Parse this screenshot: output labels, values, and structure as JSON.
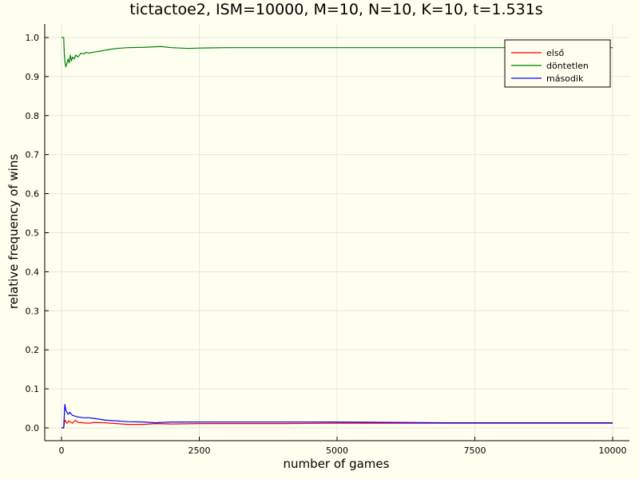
{
  "chart_data": {
    "type": "line",
    "title": "tictactoe2, ISM=10000, M=10, N=10, K=10, t=1.531s",
    "xlabel": "number of games",
    "ylabel": "relative frequency of wins",
    "xlim": [
      0,
      10000
    ],
    "ylim": [
      0,
      1.0
    ],
    "x_ticks": [
      0,
      2500,
      5000,
      7500,
      10000
    ],
    "x_tick_labels": [
      "0",
      "2500",
      "5000",
      "7500",
      "10000"
    ],
    "y_ticks": [
      0.0,
      0.1,
      0.2,
      0.3,
      0.4,
      0.5,
      0.6,
      0.7,
      0.8,
      0.9,
      1.0
    ],
    "y_tick_labels": [
      "0.0",
      "0.1",
      "0.2",
      "0.3",
      "0.4",
      "0.5",
      "0.6",
      "0.7",
      "0.8",
      "0.9",
      "1.0"
    ],
    "grid": true,
    "legend_position": "top-right",
    "background_color": "#FFFFF0",
    "series": [
      {
        "name": "első",
        "color": "#FF0000",
        "points": [
          [
            0,
            0
          ],
          [
            20,
            0
          ],
          [
            40,
            0
          ],
          [
            60,
            0.02
          ],
          [
            80,
            0.016
          ],
          [
            100,
            0.012
          ],
          [
            130,
            0.018
          ],
          [
            160,
            0.015
          ],
          [
            200,
            0.012
          ],
          [
            250,
            0.02
          ],
          [
            300,
            0.014
          ],
          [
            400,
            0.013
          ],
          [
            500,
            0.012
          ],
          [
            600,
            0.014
          ],
          [
            800,
            0.013
          ],
          [
            1000,
            0.011
          ],
          [
            1200,
            0.009
          ],
          [
            1500,
            0.009
          ],
          [
            1700,
            0.011
          ],
          [
            2000,
            0.01
          ],
          [
            2500,
            0.011
          ],
          [
            3000,
            0.011
          ],
          [
            4000,
            0.011
          ],
          [
            5000,
            0.012
          ],
          [
            6000,
            0.012
          ],
          [
            7000,
            0.012
          ],
          [
            8000,
            0.012
          ],
          [
            9000,
            0.012
          ],
          [
            10000,
            0.012
          ]
        ]
      },
      {
        "name": "döntetlen",
        "color": "#008000",
        "points": [
          [
            0,
            1.0
          ],
          [
            20,
            1.0
          ],
          [
            40,
            1.0
          ],
          [
            50,
            0.96
          ],
          [
            60,
            0.94
          ],
          [
            70,
            0.93
          ],
          [
            80,
            0.925
          ],
          [
            100,
            0.935
          ],
          [
            120,
            0.945
          ],
          [
            140,
            0.935
          ],
          [
            160,
            0.955
          ],
          [
            180,
            0.94
          ],
          [
            200,
            0.95
          ],
          [
            230,
            0.945
          ],
          [
            260,
            0.955
          ],
          [
            300,
            0.95
          ],
          [
            350,
            0.96
          ],
          [
            400,
            0.958
          ],
          [
            450,
            0.962
          ],
          [
            500,
            0.96
          ],
          [
            600,
            0.963
          ],
          [
            700,
            0.965
          ],
          [
            800,
            0.968
          ],
          [
            1000,
            0.972
          ],
          [
            1200,
            0.974
          ],
          [
            1500,
            0.975
          ],
          [
            1800,
            0.977
          ],
          [
            2000,
            0.974
          ],
          [
            2300,
            0.972
          ],
          [
            2500,
            0.973
          ],
          [
            3000,
            0.974
          ],
          [
            4000,
            0.974
          ],
          [
            5000,
            0.974
          ],
          [
            6000,
            0.974
          ],
          [
            7000,
            0.974
          ],
          [
            8000,
            0.974
          ],
          [
            9000,
            0.974
          ],
          [
            10000,
            0.974
          ]
        ]
      },
      {
        "name": "második",
        "color": "#0000FF",
        "points": [
          [
            0,
            0
          ],
          [
            20,
            0
          ],
          [
            40,
            0
          ],
          [
            60,
            0.06
          ],
          [
            80,
            0.045
          ],
          [
            100,
            0.04
          ],
          [
            120,
            0.035
          ],
          [
            150,
            0.04
          ],
          [
            180,
            0.035
          ],
          [
            200,
            0.032
          ],
          [
            250,
            0.03
          ],
          [
            300,
            0.028
          ],
          [
            400,
            0.026
          ],
          [
            500,
            0.026
          ],
          [
            600,
            0.024
          ],
          [
            800,
            0.02
          ],
          [
            1000,
            0.018
          ],
          [
            1200,
            0.016
          ],
          [
            1500,
            0.015
          ],
          [
            1700,
            0.013
          ],
          [
            2000,
            0.015
          ],
          [
            2500,
            0.015
          ],
          [
            3000,
            0.015
          ],
          [
            4000,
            0.015
          ],
          [
            5000,
            0.015
          ],
          [
            6000,
            0.014
          ],
          [
            7000,
            0.013
          ],
          [
            8000,
            0.013
          ],
          [
            9000,
            0.013
          ],
          [
            10000,
            0.013
          ]
        ]
      }
    ]
  }
}
